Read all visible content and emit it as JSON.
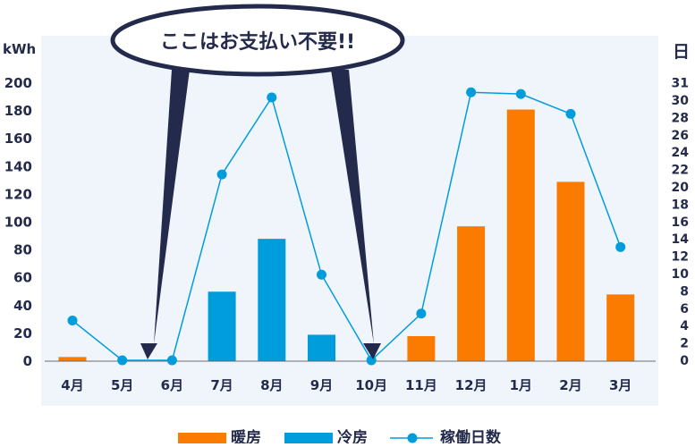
{
  "chart_data": {
    "type": "bar+line",
    "categories": [
      "4月",
      "5月",
      "6月",
      "7月",
      "8月",
      "9月",
      "10月",
      "11月",
      "12月",
      "1月",
      "2月",
      "3月"
    ],
    "left_axis": {
      "label": "kWh",
      "ylim": [
        0,
        200
      ],
      "ticks": [
        0,
        20,
        40,
        60,
        80,
        100,
        120,
        140,
        160,
        180,
        200
      ]
    },
    "right_axis": {
      "label": "日",
      "ticks": [
        0,
        2,
        4,
        6,
        8,
        10,
        12,
        14,
        16,
        18,
        20,
        22,
        24,
        26,
        28,
        30,
        31
      ]
    },
    "series": [
      {
        "name": "暖房",
        "type": "bar",
        "axis": "left",
        "color": "#fb7a00",
        "values": [
          3,
          0,
          0,
          0,
          0,
          0,
          0,
          18,
          97,
          181,
          129,
          48
        ]
      },
      {
        "name": "冷房",
        "type": "bar",
        "axis": "left",
        "color": "#009ddd",
        "values": [
          0,
          0,
          0,
          50,
          88,
          19,
          0,
          0,
          0,
          0,
          0,
          0
        ]
      },
      {
        "name": "稼働日数",
        "type": "line",
        "axis": "right",
        "color": "#009ddd",
        "values": [
          4.6,
          0,
          0,
          21.5,
          30.4,
          9.9,
          0,
          5.4,
          31,
          30.8,
          28.5,
          13.1
        ]
      }
    ],
    "annotation": "ここはお支払い不要!!",
    "annotation_targets": [
      "5月",
      "10月"
    ],
    "legend_position": "bottom",
    "grid": false
  }
}
